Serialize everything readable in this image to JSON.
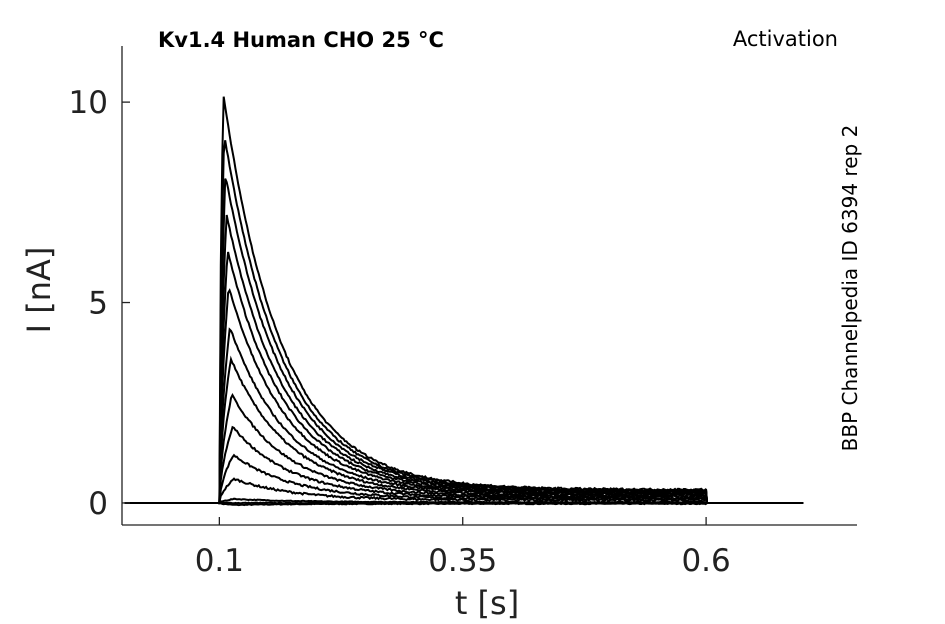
{
  "chart_data": {
    "type": "line",
    "title": "Kv1.4  Human  CHO  25 °C",
    "corner_label": "Activation",
    "side_label": "BBP Channelpedia ID 6394 rep 2",
    "xlabel": "t [s]",
    "ylabel": "I [nA]",
    "xlim": [
      -0.0,
      0.755
    ],
    "ylim": [
      -0.55,
      11.4
    ],
    "xticks": [
      {
        "value": 0.1,
        "label": "0.1"
      },
      {
        "value": 0.35,
        "label": "0.35"
      },
      {
        "value": 0.6,
        "label": "0.6"
      }
    ],
    "yticks": [
      {
        "value": 0,
        "label": "0"
      },
      {
        "value": 5,
        "label": "5"
      },
      {
        "value": 10,
        "label": "10"
      }
    ],
    "grid": false,
    "legend": "none",
    "step_start_s": 0.1,
    "step_end_s": 0.6,
    "trace_end_s": 0.7,
    "trace_start_s": 0.0,
    "series": [
      {
        "peak_nA": -0.05,
        "end_nA": -0.02
      },
      {
        "peak_nA": 0.0,
        "end_nA": 0.0
      },
      {
        "peak_nA": 0.1,
        "end_nA": 0.02
      },
      {
        "peak_nA": 0.6,
        "end_nA": 0.07
      },
      {
        "peak_nA": 1.2,
        "end_nA": 0.1
      },
      {
        "peak_nA": 1.9,
        "end_nA": 0.13
      },
      {
        "peak_nA": 2.7,
        "end_nA": 0.16
      },
      {
        "peak_nA": 3.6,
        "end_nA": 0.19
      },
      {
        "peak_nA": 4.4,
        "end_nA": 0.22
      },
      {
        "peak_nA": 5.4,
        "end_nA": 0.24
      },
      {
        "peak_nA": 6.3,
        "end_nA": 0.26
      },
      {
        "peak_nA": 7.2,
        "end_nA": 0.28
      },
      {
        "peak_nA": 8.2,
        "end_nA": 0.3
      },
      {
        "peak_nA": 9.2,
        "end_nA": 0.31
      },
      {
        "peak_nA": 10.2,
        "end_nA": 0.33
      }
    ]
  }
}
